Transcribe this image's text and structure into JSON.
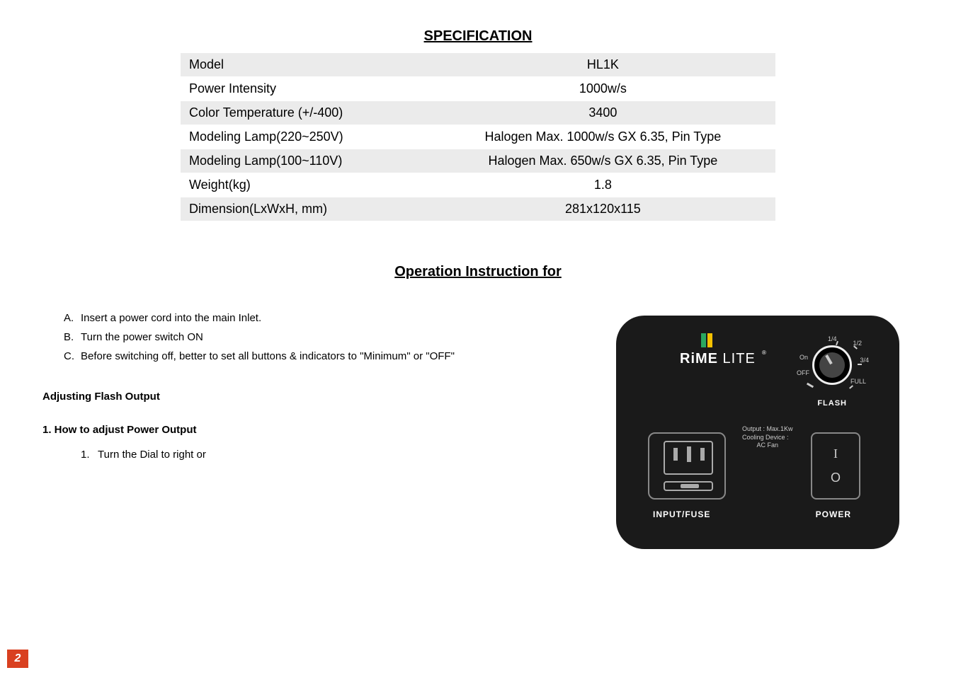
{
  "spec_title": "SPECIFICATION",
  "spec_rows": [
    {
      "label": "Model",
      "value": "HL1K",
      "shaded": true
    },
    {
      "label": "Power Intensity",
      "value": "1000w/s",
      "shaded": false
    },
    {
      "label": "Color Temperature (+/-400)",
      "value": "3400",
      "shaded": true
    },
    {
      "label": "Modeling Lamp(220~250V)",
      "value": "Halogen Max. 1000w/s GX 6.35, Pin Type",
      "shaded": false
    },
    {
      "label": "Modeling Lamp(100~110V)",
      "value": "Halogen Max. 650w/s GX 6.35, Pin Type",
      "shaded": true
    },
    {
      "label": "Weight(kg)",
      "value": "1.8",
      "shaded": false
    },
    {
      "label": "Dimension(LxWxH, mm)",
      "value": "281x120x115",
      "shaded": true
    }
  ],
  "op_title": "Operation Instruction for ",
  "steps": [
    {
      "marker": "A.",
      "text": "Insert a power cord into the main Inlet."
    },
    {
      "marker": "B.",
      "text": "Turn the power switch ON"
    },
    {
      "marker": "C.",
      "text": "Before switching off, better to set all buttons & indicators to \"Minimum\" or \"OFF\""
    }
  ],
  "adjust_heading": "Adjusting Flash Output",
  "howto_heading": "1. How to adjust Power Output",
  "howto_steps": [
    {
      "marker": "1.",
      "text": "Turn the Dial to right or"
    }
  ],
  "panel": {
    "brand_bold": "RiME",
    "brand_thin": " LITE",
    "brand_mark": "®",
    "flash_label": "FLASH",
    "input_fuse_label": "INPUT/FUSE",
    "power_label": "POWER",
    "info_line1": "Output : Max.1Kw",
    "info_line2": "Cooling Device :",
    "info_line3": "AC Fan",
    "dial": {
      "off": "OFF",
      "on": "On",
      "full": "FULL",
      "q14": "1/4",
      "q12": "1/2",
      "q34": "3/4"
    },
    "power_i": "I",
    "power_o": "O"
  },
  "page_number": "2",
  "colors": {
    "shaded_row": "#ebebeb",
    "panel_bg": "#1a1a1a",
    "corner_bg": "#d94020"
  }
}
